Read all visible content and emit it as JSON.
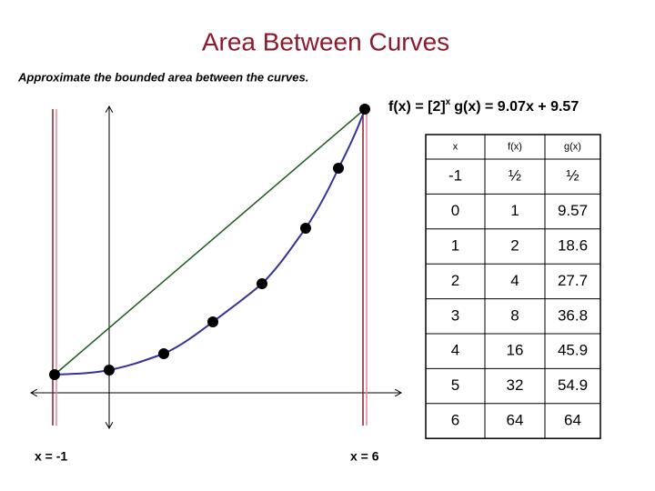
{
  "title": "Area Between Curves",
  "subtitle": "Approximate the bounded area between the curves.",
  "formula": {
    "f_base": "f(x) = [2]",
    "f_exponent": "x",
    "g": "g(x) = 9.07x + 9.57"
  },
  "table": {
    "header": [
      "x",
      "f(x)",
      "g(x)"
    ],
    "rows": [
      [
        "-1",
        "½",
        "½"
      ],
      [
        "0",
        "1",
        "9.57"
      ],
      [
        "1",
        "2",
        "18.6"
      ],
      [
        "2",
        "4",
        "27.7"
      ],
      [
        "3",
        "8",
        "36.8"
      ],
      [
        "4",
        "16",
        "45.9"
      ],
      [
        "5",
        "32",
        "54.9"
      ],
      [
        "6",
        "64",
        "64"
      ]
    ]
  },
  "bounds": {
    "left": "x = -1",
    "right": "x = 6"
  }
}
